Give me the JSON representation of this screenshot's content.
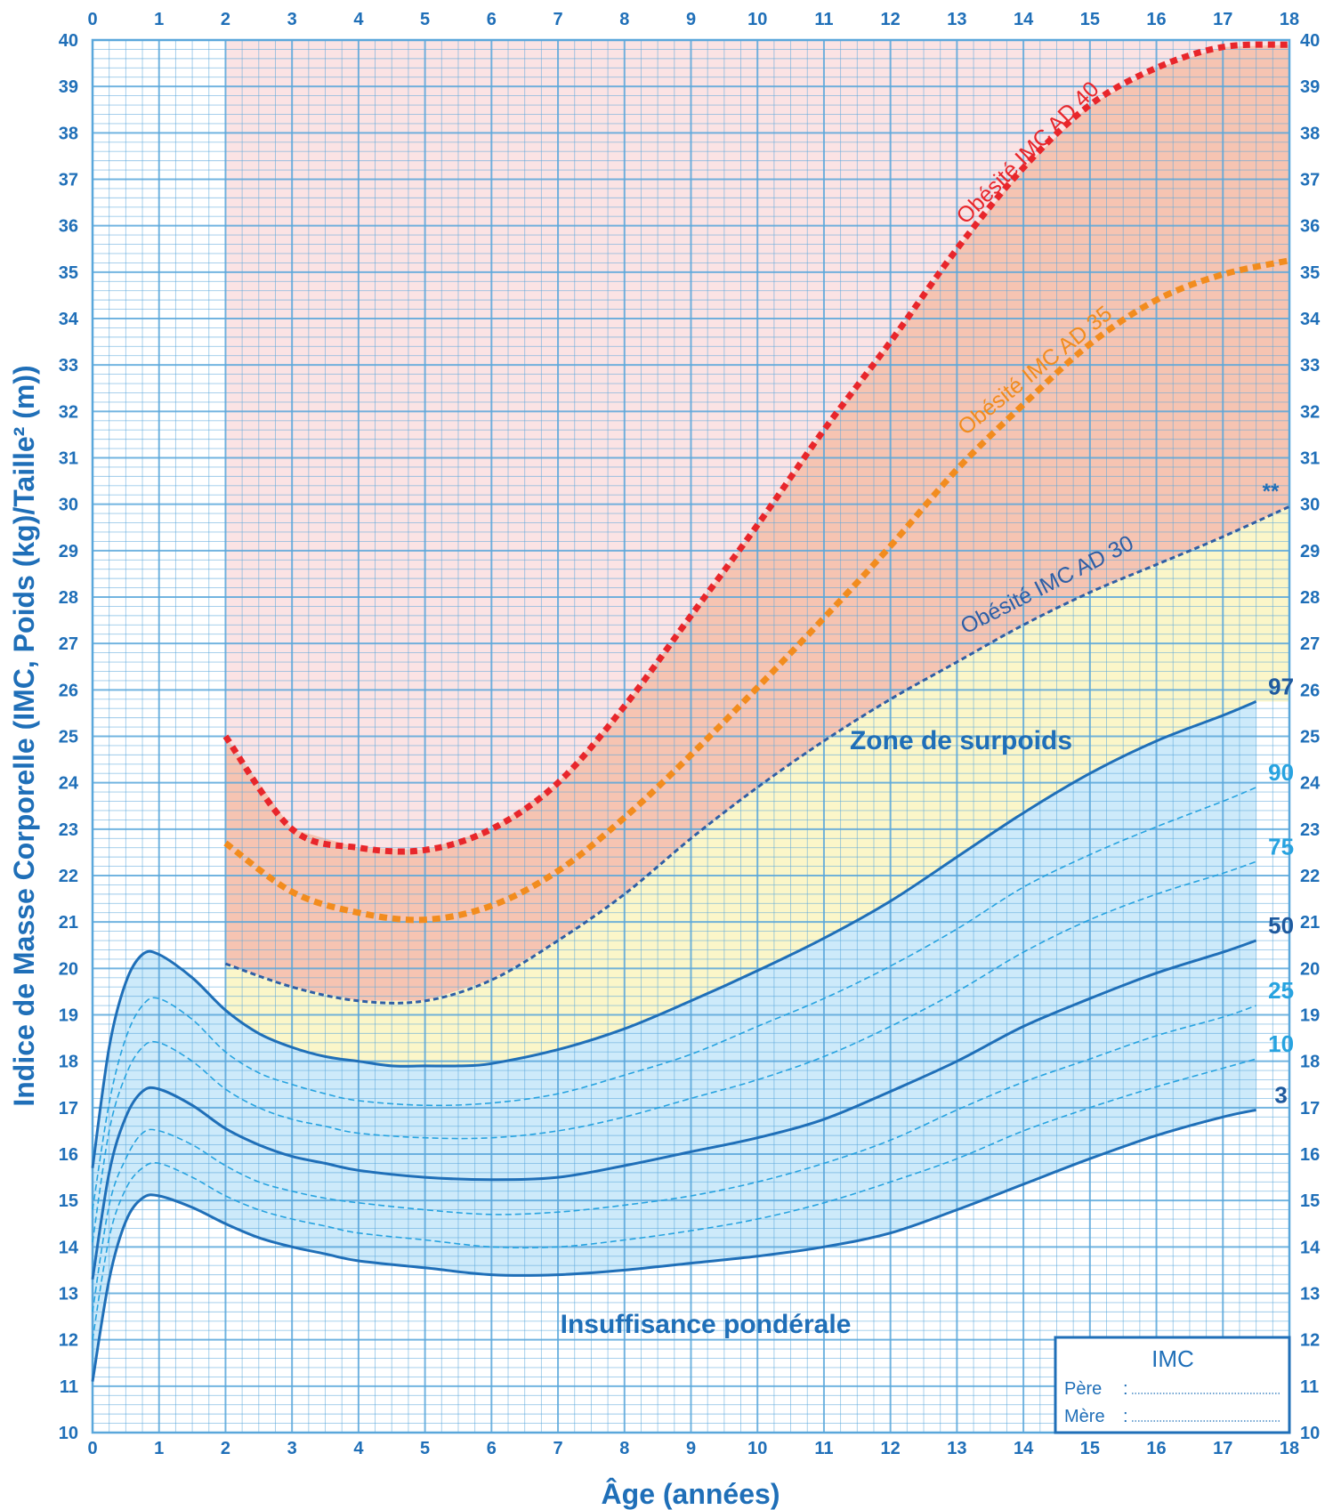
{
  "chart_data": {
    "type": "line",
    "xlabel": "Âge (années)",
    "ylabel": "Indice de Masse Corporelle (IMC, Poids (kg)/Taille² (m))",
    "xlim": [
      0,
      18
    ],
    "ylim": [
      10,
      40
    ],
    "x_ticks": [
      "0",
      "1",
      "2",
      "3",
      "4",
      "5",
      "6",
      "7",
      "8",
      "9",
      "10",
      "11",
      "12",
      "13",
      "14",
      "15",
      "16",
      "17",
      "18"
    ],
    "y_ticks": [
      "10",
      "11",
      "12",
      "13",
      "14",
      "15",
      "16",
      "17",
      "18",
      "19",
      "20",
      "21",
      "22",
      "23",
      "24",
      "25",
      "26",
      "27",
      "28",
      "29",
      "30",
      "31",
      "32",
      "33",
      "34",
      "35",
      "36",
      "37",
      "38",
      "39",
      "40"
    ],
    "grid": true,
    "annotations": {
      "zone_surpoids": "Zone de surpoids",
      "insuffisance": "Insuffisance pondérale",
      "asterisk": "**"
    },
    "percentiles": [
      {
        "label": "97",
        "style": "solid",
        "points": [
          [
            0,
            15.7
          ],
          [
            0.25,
            18.3
          ],
          [
            0.5,
            19.7
          ],
          [
            0.75,
            20.3
          ],
          [
            1,
            20.3
          ],
          [
            1.5,
            19.8
          ],
          [
            2,
            19.1
          ],
          [
            2.5,
            18.6
          ],
          [
            3,
            18.3
          ],
          [
            3.5,
            18.1
          ],
          [
            4,
            18.0
          ],
          [
            4.5,
            17.9
          ],
          [
            5,
            17.9
          ],
          [
            5.5,
            17.9
          ],
          [
            6,
            17.95
          ],
          [
            7,
            18.25
          ],
          [
            8,
            18.7
          ],
          [
            9,
            19.3
          ],
          [
            10,
            19.95
          ],
          [
            11,
            20.65
          ],
          [
            12,
            21.45
          ],
          [
            13,
            22.4
          ],
          [
            14,
            23.35
          ],
          [
            15,
            24.2
          ],
          [
            16,
            24.9
          ],
          [
            17,
            25.45
          ],
          [
            17.5,
            25.75
          ]
        ]
      },
      {
        "label": "90",
        "style": "dashed",
        "points": [
          [
            0,
            14.8
          ],
          [
            0.25,
            17.1
          ],
          [
            0.5,
            18.5
          ],
          [
            0.75,
            19.2
          ],
          [
            1,
            19.35
          ],
          [
            1.5,
            18.9
          ],
          [
            2,
            18.2
          ],
          [
            2.5,
            17.75
          ],
          [
            3,
            17.5
          ],
          [
            3.5,
            17.3
          ],
          [
            4,
            17.15
          ],
          [
            5,
            17.05
          ],
          [
            6,
            17.1
          ],
          [
            7,
            17.3
          ],
          [
            8,
            17.7
          ],
          [
            9,
            18.15
          ],
          [
            10,
            18.75
          ],
          [
            11,
            19.35
          ],
          [
            12,
            20.05
          ],
          [
            13,
            20.85
          ],
          [
            14,
            21.75
          ],
          [
            15,
            22.45
          ],
          [
            16,
            23.05
          ],
          [
            17,
            23.6
          ],
          [
            17.5,
            23.9
          ]
        ]
      },
      {
        "label": "75",
        "style": "dashed",
        "points": [
          [
            0,
            14.1
          ],
          [
            0.25,
            16.5
          ],
          [
            0.5,
            17.7
          ],
          [
            0.75,
            18.3
          ],
          [
            1,
            18.4
          ],
          [
            1.5,
            18.0
          ],
          [
            2,
            17.4
          ],
          [
            2.5,
            17.0
          ],
          [
            3,
            16.75
          ],
          [
            3.5,
            16.6
          ],
          [
            4,
            16.45
          ],
          [
            5,
            16.35
          ],
          [
            6,
            16.35
          ],
          [
            7,
            16.5
          ],
          [
            8,
            16.8
          ],
          [
            9,
            17.2
          ],
          [
            10,
            17.6
          ],
          [
            11,
            18.1
          ],
          [
            12,
            18.75
          ],
          [
            13,
            19.5
          ],
          [
            14,
            20.35
          ],
          [
            15,
            21.05
          ],
          [
            16,
            21.6
          ],
          [
            17,
            22.05
          ],
          [
            17.5,
            22.3
          ]
        ]
      },
      {
        "label": "50",
        "style": "solid",
        "points": [
          [
            0,
            13.3
          ],
          [
            0.25,
            15.6
          ],
          [
            0.5,
            16.8
          ],
          [
            0.75,
            17.35
          ],
          [
            1,
            17.4
          ],
          [
            1.5,
            17.05
          ],
          [
            2,
            16.55
          ],
          [
            2.5,
            16.2
          ],
          [
            3,
            15.95
          ],
          [
            3.5,
            15.8
          ],
          [
            4,
            15.65
          ],
          [
            5,
            15.5
          ],
          [
            6,
            15.45
          ],
          [
            7,
            15.5
          ],
          [
            8,
            15.75
          ],
          [
            9,
            16.05
          ],
          [
            10,
            16.35
          ],
          [
            11,
            16.75
          ],
          [
            12,
            17.35
          ],
          [
            13,
            18.0
          ],
          [
            14,
            18.75
          ],
          [
            15,
            19.35
          ],
          [
            16,
            19.9
          ],
          [
            17,
            20.35
          ],
          [
            17.5,
            20.6
          ]
        ]
      },
      {
        "label": "25",
        "style": "dashed",
        "points": [
          [
            0,
            12.6
          ],
          [
            0.25,
            14.9
          ],
          [
            0.5,
            15.9
          ],
          [
            0.75,
            16.45
          ],
          [
            1,
            16.5
          ],
          [
            1.5,
            16.2
          ],
          [
            2,
            15.75
          ],
          [
            2.5,
            15.4
          ],
          [
            3,
            15.2
          ],
          [
            3.5,
            15.05
          ],
          [
            4,
            14.95
          ],
          [
            5,
            14.8
          ],
          [
            6,
            14.7
          ],
          [
            7,
            14.75
          ],
          [
            8,
            14.9
          ],
          [
            9,
            15.1
          ],
          [
            10,
            15.4
          ],
          [
            11,
            15.8
          ],
          [
            12,
            16.3
          ],
          [
            13,
            16.95
          ],
          [
            14,
            17.55
          ],
          [
            15,
            18.05
          ],
          [
            16,
            18.55
          ],
          [
            17,
            18.95
          ],
          [
            17.5,
            19.2
          ]
        ]
      },
      {
        "label": "10",
        "style": "dashed",
        "points": [
          [
            0,
            12.0
          ],
          [
            0.25,
            14.2
          ],
          [
            0.5,
            15.25
          ],
          [
            0.75,
            15.7
          ],
          [
            1,
            15.8
          ],
          [
            1.5,
            15.5
          ],
          [
            2,
            15.1
          ],
          [
            2.5,
            14.8
          ],
          [
            3,
            14.6
          ],
          [
            3.5,
            14.45
          ],
          [
            4,
            14.3
          ],
          [
            5,
            14.15
          ],
          [
            6,
            14.0
          ],
          [
            7,
            14.0
          ],
          [
            8,
            14.15
          ],
          [
            9,
            14.35
          ],
          [
            10,
            14.6
          ],
          [
            11,
            14.95
          ],
          [
            12,
            15.4
          ],
          [
            13,
            15.9
          ],
          [
            14,
            16.5
          ],
          [
            15,
            17.0
          ],
          [
            16,
            17.45
          ],
          [
            17,
            17.85
          ],
          [
            17.5,
            18.05
          ]
        ]
      },
      {
        "label": "3",
        "style": "solid",
        "points": [
          [
            0,
            11.1
          ],
          [
            0.25,
            13.3
          ],
          [
            0.5,
            14.55
          ],
          [
            0.75,
            15.05
          ],
          [
            1,
            15.1
          ],
          [
            1.5,
            14.85
          ],
          [
            2,
            14.5
          ],
          [
            2.5,
            14.2
          ],
          [
            3,
            14.0
          ],
          [
            3.5,
            13.85
          ],
          [
            4,
            13.7
          ],
          [
            5,
            13.55
          ],
          [
            6,
            13.4
          ],
          [
            7,
            13.4
          ],
          [
            8,
            13.5
          ],
          [
            9,
            13.65
          ],
          [
            10,
            13.8
          ],
          [
            11,
            14.0
          ],
          [
            12,
            14.3
          ],
          [
            13,
            14.8
          ],
          [
            14,
            15.35
          ],
          [
            15,
            15.9
          ],
          [
            16,
            16.4
          ],
          [
            17,
            16.8
          ],
          [
            17.5,
            16.95
          ]
        ]
      }
    ],
    "obesity_curves": [
      {
        "label": "Obésité IMC AD 30",
        "color": "#2e5fa6",
        "points": [
          [
            2,
            20.1
          ],
          [
            3,
            19.6
          ],
          [
            4,
            19.3
          ],
          [
            5,
            19.3
          ],
          [
            6,
            19.75
          ],
          [
            7,
            20.6
          ],
          [
            8,
            21.6
          ],
          [
            9,
            22.8
          ],
          [
            10,
            23.9
          ],
          [
            11,
            24.9
          ],
          [
            12,
            25.8
          ],
          [
            13,
            26.6
          ],
          [
            14,
            27.4
          ],
          [
            15,
            28.1
          ],
          [
            16,
            28.7
          ],
          [
            17,
            29.3
          ],
          [
            18,
            29.95
          ]
        ]
      },
      {
        "label": "Obésité IMC AD 35",
        "color": "#f28c1e",
        "points": [
          [
            2,
            22.7
          ],
          [
            3,
            21.65
          ],
          [
            4,
            21.2
          ],
          [
            5,
            21.05
          ],
          [
            6,
            21.35
          ],
          [
            7,
            22.1
          ],
          [
            8,
            23.25
          ],
          [
            9,
            24.6
          ],
          [
            10,
            26.05
          ],
          [
            11,
            27.55
          ],
          [
            12,
            29.1
          ],
          [
            13,
            30.75
          ],
          [
            14,
            32.15
          ],
          [
            15,
            33.45
          ],
          [
            16,
            34.4
          ],
          [
            17,
            34.95
          ],
          [
            18,
            35.25
          ]
        ]
      },
      {
        "label": "Obésité IMC AD 40",
        "color": "#e8262b",
        "points": [
          [
            2,
            25.0
          ],
          [
            3,
            23.0
          ],
          [
            4,
            22.6
          ],
          [
            5,
            22.55
          ],
          [
            6,
            23.0
          ],
          [
            7,
            24.0
          ],
          [
            8,
            25.65
          ],
          [
            9,
            27.6
          ],
          [
            10,
            29.55
          ],
          [
            11,
            31.6
          ],
          [
            12,
            33.5
          ],
          [
            13,
            35.5
          ],
          [
            14,
            37.25
          ],
          [
            15,
            38.6
          ],
          [
            16,
            39.4
          ],
          [
            17,
            39.85
          ],
          [
            18,
            39.9
          ]
        ]
      }
    ]
  },
  "legend_box": {
    "title": "IMC",
    "rows": [
      {
        "label": "Père",
        "sep": ":"
      },
      {
        "label": "Mère",
        "sep": ":"
      }
    ]
  },
  "colors": {
    "axis_blue": "#1f6fb8",
    "grid_blue": "#5aa7db",
    "obese_fill": "#f6c4b2",
    "pink_fill": "#fbe3e4",
    "overweight_fill": "#fbf6c9",
    "normal_fill": "#cdeafa",
    "percentile_line": "#1f6fb8",
    "percentile_dashed": "#27a3e0"
  }
}
